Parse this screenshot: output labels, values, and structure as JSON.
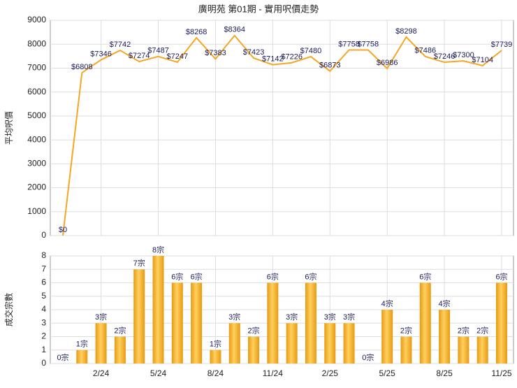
{
  "chart_data": [
    {
      "type": "line",
      "title": "廣明苑 第01期 - 實用呎價走勢",
      "y_label": "平均呎價",
      "color": "#f5a623",
      "values": [
        0,
        6808,
        7346,
        7742,
        7274,
        7487,
        7247,
        8268,
        7383,
        8364,
        7423,
        7142,
        7226,
        7480,
        6873,
        7758,
        7758,
        6986,
        8298,
        7486,
        7246,
        7300,
        7104,
        7739
      ],
      "value_labels": [
        "$0",
        "$6808",
        "$7346",
        "$7742",
        "$7274",
        "$7487",
        "$7247",
        "$8268",
        "$7383",
        "$8364",
        "$7423",
        "$7142",
        "$7226",
        "$7480",
        "$6873",
        "$7758",
        "$7758",
        "$6986",
        "$8298",
        "$7486",
        "$7246",
        "$7300",
        "$7104",
        "$7739"
      ],
      "ylim": [
        0,
        9000
      ],
      "yticks": [
        0,
        1000,
        2000,
        3000,
        4000,
        5000,
        6000,
        7000,
        8000,
        9000
      ],
      "grid": true
    },
    {
      "type": "bar",
      "y_label": "成交宗數",
      "color": "#f5a623",
      "categories": [
        null,
        null,
        "2/24",
        null,
        null,
        "5/24",
        null,
        null,
        "8/24",
        null,
        null,
        "11/24",
        null,
        null,
        "2/25",
        null,
        null,
        "5/25",
        null,
        null,
        "8/25",
        null,
        null,
        "11/25"
      ],
      "values": [
        0,
        1,
        3,
        2,
        7,
        8,
        6,
        6,
        1,
        3,
        2,
        6,
        3,
        6,
        3,
        3,
        0,
        4,
        2,
        6,
        4,
        2,
        2,
        6
      ],
      "value_labels": [
        "0宗",
        "1宗",
        "3宗",
        "2宗",
        "7宗",
        "8宗",
        "6宗",
        "6宗",
        "1宗",
        "3宗",
        "2宗",
        "6宗",
        "3宗",
        "6宗",
        "3宗",
        "3宗",
        "0宗",
        "4宗",
        "2宗",
        "6宗",
        "4宗",
        "2宗",
        "2宗",
        "6宗"
      ],
      "ylim": [
        0,
        8
      ],
      "yticks": [
        0,
        1,
        2,
        3,
        4,
        5,
        6,
        7,
        8
      ],
      "grid": true
    }
  ]
}
